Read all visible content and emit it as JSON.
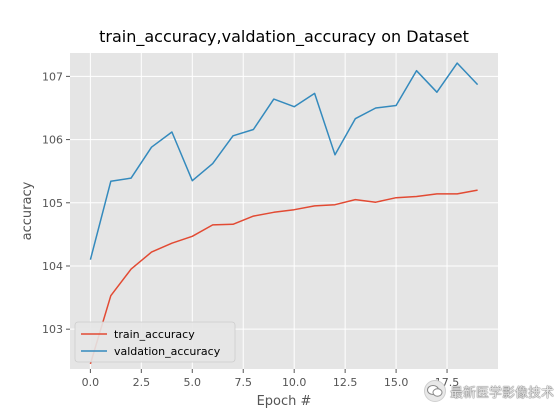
{
  "chart_data": {
    "type": "line",
    "title": "train_accuracy,valdation_accuracy on Dataset",
    "xlabel": "Epoch #",
    "ylabel": "accuracy",
    "xlim": [
      -1,
      20
    ],
    "ylim": [
      102.37,
      107.37
    ],
    "xticks": [
      "0.0",
      "2.5",
      "5.0",
      "7.5",
      "10.0",
      "12.5",
      "15.0",
      "17.5"
    ],
    "xtick_values": [
      0,
      2.5,
      5,
      7.5,
      10,
      12.5,
      15,
      17.5
    ],
    "yticks": [
      "103",
      "104",
      "105",
      "106",
      "107"
    ],
    "ytick_values": [
      103,
      104,
      105,
      106,
      107
    ],
    "grid": true,
    "legend_position": "lower-left",
    "x": [
      0,
      1,
      2,
      3,
      4,
      5,
      6,
      7,
      8,
      9,
      10,
      11,
      12,
      13,
      14,
      15,
      16,
      17,
      18,
      19
    ],
    "series": [
      {
        "name": "train_accuracy",
        "color": "#e24a33",
        "values": [
          102.45,
          103.53,
          103.95,
          104.22,
          104.36,
          104.47,
          104.65,
          104.66,
          104.79,
          104.85,
          104.89,
          104.95,
          104.97,
          105.05,
          105.01,
          105.08,
          105.1,
          105.14,
          105.14,
          105.2
        ]
      },
      {
        "name": "valdation_accuracy",
        "color": "#348abd",
        "values": [
          104.1,
          105.34,
          105.39,
          105.88,
          106.12,
          105.35,
          105.62,
          106.06,
          106.16,
          106.64,
          106.52,
          106.73,
          105.76,
          106.33,
          106.5,
          106.54,
          107.09,
          106.75,
          107.21,
          106.87
        ]
      }
    ]
  },
  "watermark": {
    "text": "最新医学影像技术",
    "icon": "wechat-icon"
  }
}
